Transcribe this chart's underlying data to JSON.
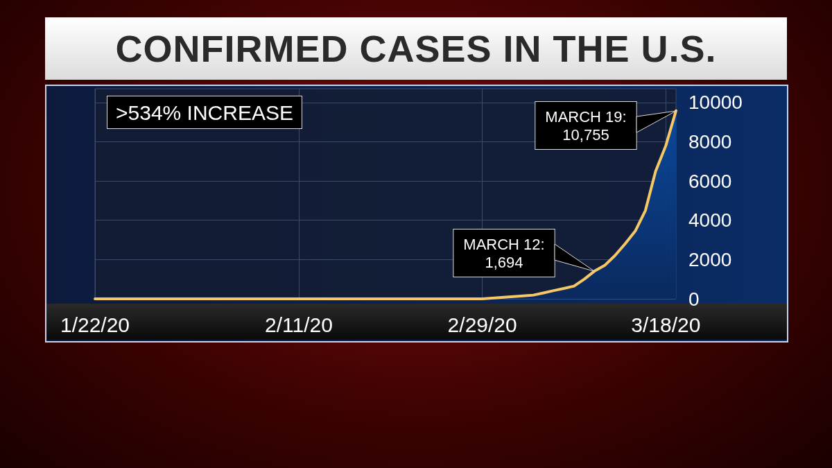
{
  "chart_data": {
    "type": "area",
    "title": "CONFIRMED CASES IN THE U.S.",
    "x": [
      "2020-01-22",
      "2020-01-30",
      "2020-02-08",
      "2020-02-18",
      "2020-02-29",
      "2020-03-04",
      "2020-03-05",
      "2020-03-06",
      "2020-03-07",
      "2020-03-08",
      "2020-03-09",
      "2020-03-10",
      "2020-03-11",
      "2020-03-12",
      "2020-03-13",
      "2020-03-14",
      "2020-03-15",
      "2020-03-16",
      "2020-03-17",
      "2020-03-18",
      "2020-03-19"
    ],
    "series": [
      {
        "color": "#f5c766",
        "values": [
          0,
          0,
          0,
          0,
          0,
          150,
          190,
          300,
          420,
          530,
          650,
          1000,
          1410,
          1700,
          2200,
          2800,
          3450,
          4500,
          6500,
          7800,
          9580
        ]
      }
    ],
    "xlim": [
      "2020-01-22",
      "2020-03-19"
    ],
    "xticks": [
      {
        "value": "2020-01-22",
        "label": "1/22/20"
      },
      {
        "value": "2020-02-11",
        "label": "2/11/20"
      },
      {
        "value": "2020-02-29",
        "label": "2/29/20"
      },
      {
        "value": "2020-03-18",
        "label": "3/18/20"
      }
    ],
    "ylim": [
      0,
      10700
    ],
    "yticks": [
      0,
      2000,
      4000,
      6000,
      8000,
      10000
    ],
    "grid": true,
    "marker": "none",
    "line_style": "solid",
    "annotations": [
      ">534% INCREASE",
      "MARCH 12:\n1,694",
      "MARCH 19:\n10,755"
    ]
  }
}
